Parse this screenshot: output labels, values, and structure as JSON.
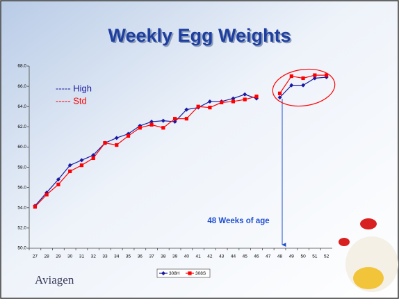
{
  "logo": "Aviagen",
  "chart_data": {
    "type": "line",
    "title": "Weekly Egg Weights",
    "categories": [
      "27",
      "28",
      "29",
      "30",
      "31",
      "32",
      "33",
      "34",
      "35",
      "36",
      "37",
      "38",
      "39",
      "40",
      "41",
      "42",
      "43",
      "44",
      "45",
      "46",
      "47",
      "48",
      "49",
      "50",
      "51",
      "52"
    ],
    "series": [
      {
        "name": "308H",
        "color": "#1a1aa0",
        "marker": "diamond",
        "values": [
          54.2,
          55.5,
          56.8,
          58.2,
          58.7,
          59.2,
          60.4,
          60.9,
          61.3,
          62.1,
          62.5,
          62.6,
          62.5,
          63.7,
          63.9,
          64.5,
          64.5,
          64.8,
          65.2,
          64.8,
          null,
          64.9,
          66.1,
          66.1,
          66.8,
          66.9
        ]
      },
      {
        "name": "308S",
        "color": "#ff0000",
        "marker": "square",
        "values": [
          54.1,
          55.3,
          56.3,
          57.6,
          58.2,
          58.9,
          60.4,
          60.2,
          61.1,
          61.9,
          62.2,
          61.9,
          62.8,
          62.8,
          64.0,
          63.9,
          64.4,
          64.5,
          64.7,
          65.0,
          null,
          65.3,
          67.0,
          66.8,
          67.1,
          67.1
        ]
      }
    ],
    "ylim": [
      50,
      68
    ],
    "yticks": [
      {
        "value": 50,
        "label": "50.0"
      },
      {
        "value": 52,
        "label": "52.0"
      },
      {
        "value": 54,
        "label": "54.0"
      },
      {
        "value": 56,
        "label": "56.0"
      },
      {
        "value": 58,
        "label": "58.0"
      },
      {
        "value": 60,
        "label": "60.0"
      },
      {
        "value": 62,
        "label": "62.0"
      },
      {
        "value": 64,
        "label": "64.0"
      },
      {
        "value": 66,
        "label": "66.0"
      },
      {
        "value": 68,
        "label": "68.0"
      }
    ],
    "grid": false,
    "legend": "bottom",
    "annotations": [
      {
        "text": "----- High",
        "color": "#1a1aa0"
      },
      {
        "text": "----- Std",
        "color": "#ff0000"
      },
      {
        "text": "48 Weeks of age",
        "color": "#1f4fd0"
      }
    ]
  }
}
